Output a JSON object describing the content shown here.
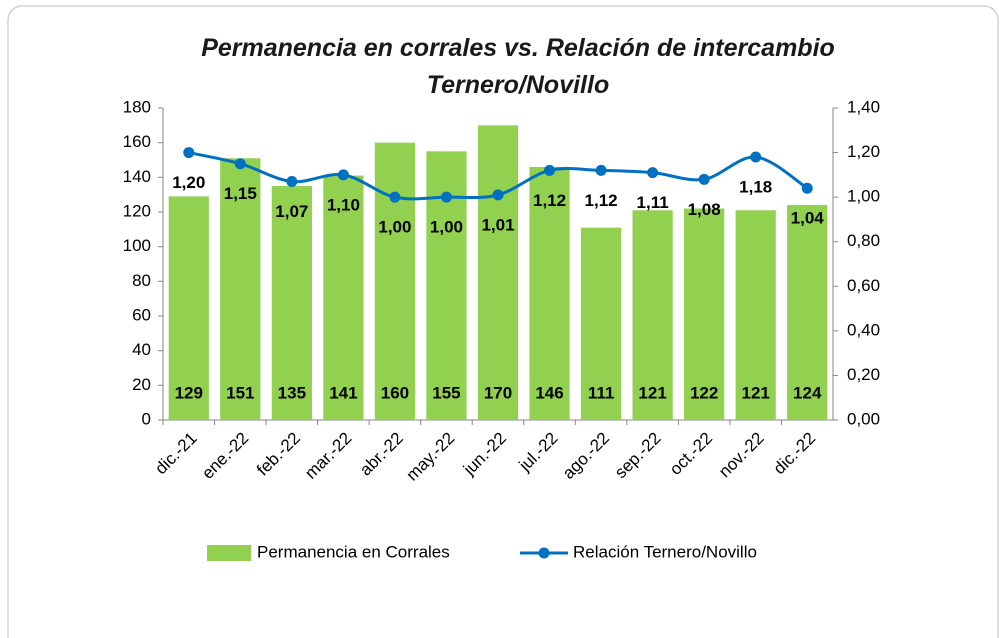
{
  "chart_data": {
    "type": "bar_line",
    "title": "Permanencia en corrales vs. Relación de intercambio Ternero/Novillo",
    "categories": [
      "dic.-21",
      "ene.-22",
      "feb.-22",
      "mar.-22",
      "abr.-22",
      "may.-22",
      "jun.-22",
      "jul.-22",
      "ago.-22",
      "sep.-22",
      "oct.-22",
      "nov.-22",
      "dic.-22"
    ],
    "series": [
      {
        "name": "Permanencia en Corrales",
        "type": "bar",
        "color": "#92d050",
        "axis": "y",
        "values": [
          129,
          151,
          135,
          141,
          160,
          155,
          170,
          146,
          111,
          121,
          122,
          121,
          124
        ]
      },
      {
        "name": "Relación Ternero/Novillo",
        "type": "line",
        "color": "#0070c0",
        "axis": "y2",
        "values": [
          1.2,
          1.15,
          1.07,
          1.1,
          1.0,
          1.0,
          1.01,
          1.12,
          1.12,
          1.11,
          1.08,
          1.18,
          1.04
        ],
        "value_labels": [
          "1,20",
          "1,15",
          "1,07",
          "1,10",
          "1,00",
          "1,00",
          "1,01",
          "1,12",
          "1,12",
          "1,11",
          "1,08",
          "1,18",
          "1,04"
        ]
      }
    ],
    "ylim": [
      0,
      180
    ],
    "yticks": [
      0,
      20,
      40,
      60,
      80,
      100,
      120,
      140,
      160,
      180
    ],
    "y2lim": [
      0,
      1.4
    ],
    "y2ticks": [
      {
        "value": 0,
        "label": "0,00"
      },
      {
        "value": 0.2,
        "label": "0,20"
      },
      {
        "value": 0.4,
        "label": "0,40"
      },
      {
        "value": 0.6,
        "label": "0,60"
      },
      {
        "value": 0.8,
        "label": "0,80"
      },
      {
        "value": 1.0,
        "label": "1,00"
      },
      {
        "value": 1.2,
        "label": "1,20"
      },
      {
        "value": 1.4,
        "label": "1,40"
      }
    ],
    "legend": "bottom"
  }
}
